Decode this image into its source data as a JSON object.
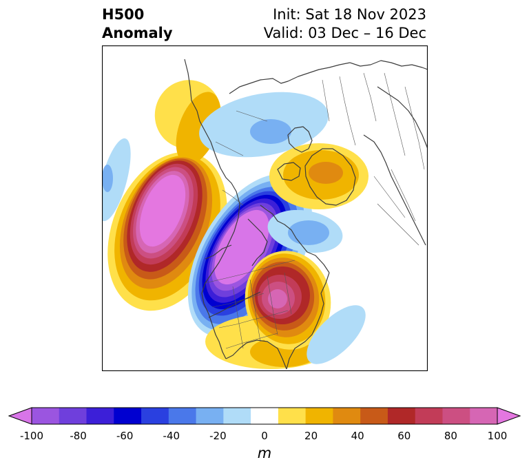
{
  "title": {
    "left_line1": "H500",
    "left_line2": "Anomaly",
    "right_line1": "Init: Sat 18 Nov 2023",
    "right_line2": "Valid: 03 Dec – 16 Dec"
  },
  "colorbar": {
    "unit": "m",
    "ticks": [
      "-100",
      "-80",
      "-60",
      "-40",
      "-20",
      "0",
      "20",
      "40",
      "60",
      "80",
      "100"
    ],
    "colors": [
      "#d875e8",
      "#9b55e0",
      "#6f3fdc",
      "#3c1fd8",
      "#0000d0",
      "#2a40e0",
      "#4a78ea",
      "#78b0f2",
      "#b0dcf8",
      "#ffffff",
      "#ffe04a",
      "#f0b400",
      "#e08a10",
      "#c85a18",
      "#b02828",
      "#c23c58",
      "#cc4f82",
      "#d666b4",
      "#e477e0"
    ]
  },
  "map": {
    "anomaly_features": [
      {
        "name": "ridge-northeast-pacific",
        "sign": "positive",
        "peak_m": 100
      },
      {
        "name": "trough-western-north-america",
        "sign": "negative",
        "peak_m": -100
      },
      {
        "name": "ridge-eastern-north-america",
        "sign": "positive",
        "peak_m": 80
      },
      {
        "name": "ridge-greenland",
        "sign": "positive",
        "peak_m": 40
      },
      {
        "name": "ridge-gulf-southeast",
        "sign": "positive",
        "peak_m": 20
      },
      {
        "name": "trough-western-atlantic",
        "sign": "negative",
        "peak_m": -20
      },
      {
        "name": "trough-arctic-north-canada",
        "sign": "negative",
        "peak_m": -20
      },
      {
        "name": "trough-north-atlantic",
        "sign": "negative",
        "peak_m": -20
      },
      {
        "name": "trough-west-pacific",
        "sign": "negative",
        "peak_m": -20
      }
    ]
  }
}
